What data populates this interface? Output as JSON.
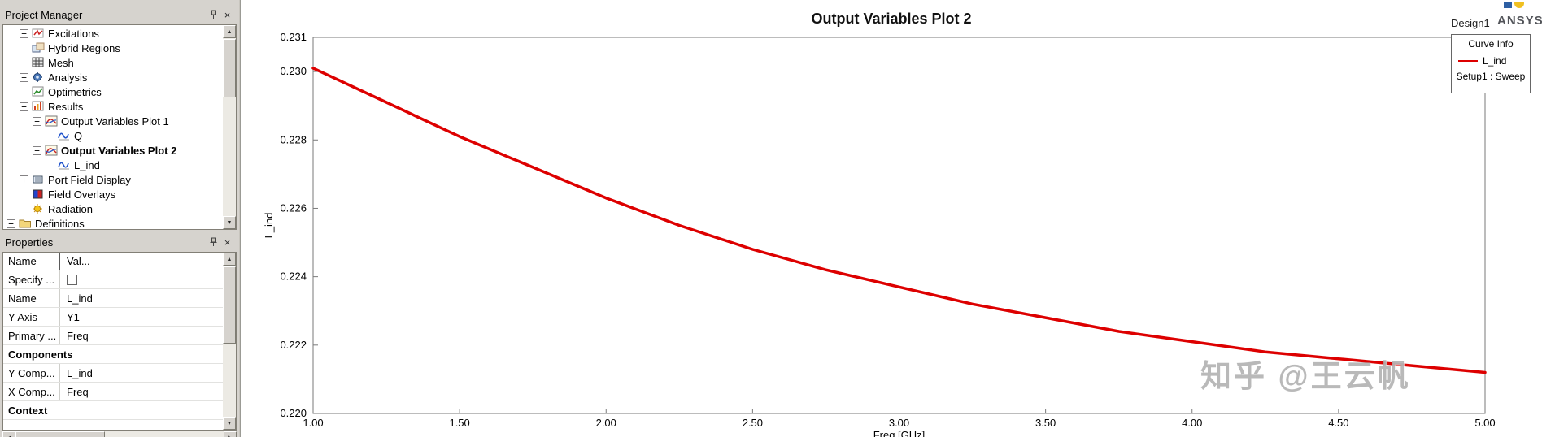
{
  "project_manager": {
    "title": "Project Manager",
    "tree": [
      {
        "label": "Excitations",
        "depth": 1,
        "toggle": "+",
        "icon": "excitations-icon",
        "bold": false
      },
      {
        "label": "Hybrid Regions",
        "depth": 1,
        "toggle": "",
        "icon": "hybrid-regions-icon",
        "bold": false
      },
      {
        "label": "Mesh",
        "depth": 1,
        "toggle": "",
        "icon": "mesh-icon",
        "bold": false
      },
      {
        "label": "Analysis",
        "depth": 1,
        "toggle": "+",
        "icon": "analysis-icon",
        "bold": false
      },
      {
        "label": "Optimetrics",
        "depth": 1,
        "toggle": "",
        "icon": "optimetrics-icon",
        "bold": false
      },
      {
        "label": "Results",
        "depth": 1,
        "toggle": "-",
        "icon": "results-icon",
        "bold": false
      },
      {
        "label": "Output Variables Plot 1",
        "depth": 2,
        "toggle": "-",
        "icon": "plot-icon",
        "bold": false
      },
      {
        "label": "Q",
        "depth": 3,
        "toggle": "",
        "icon": "trace-icon",
        "bold": false
      },
      {
        "label": "Output Variables Plot 2",
        "depth": 2,
        "toggle": "-",
        "icon": "plot-icon",
        "bold": true
      },
      {
        "label": "L_ind",
        "depth": 3,
        "toggle": "",
        "icon": "trace-icon",
        "bold": false
      },
      {
        "label": "Port Field Display",
        "depth": 1,
        "toggle": "+",
        "icon": "port-field-icon",
        "bold": false
      },
      {
        "label": "Field Overlays",
        "depth": 1,
        "toggle": "",
        "icon": "field-overlays-icon",
        "bold": false
      },
      {
        "label": "Radiation",
        "depth": 1,
        "toggle": "",
        "icon": "radiation-icon",
        "bold": false
      },
      {
        "label": "Definitions",
        "depth": 0,
        "toggle": "-",
        "icon": "folder-icon",
        "bold": false
      }
    ]
  },
  "properties": {
    "title": "Properties",
    "columns": [
      "Name",
      "Val..."
    ],
    "rows": [
      {
        "name": "Specify ...",
        "value": "",
        "checkbox": true
      },
      {
        "name": "Name",
        "value": "L_ind"
      },
      {
        "name": "Y Axis",
        "value": "Y1"
      },
      {
        "name": "Primary ...",
        "value": "Freq"
      },
      {
        "name": "Components",
        "value": "",
        "section": true
      },
      {
        "name": "Y Comp...",
        "value": "L_ind"
      },
      {
        "name": "X Comp...",
        "value": "Freq"
      },
      {
        "name": "Context",
        "value": "",
        "section": true
      }
    ]
  },
  "chart": {
    "title": "Output Variables Plot 2",
    "design_label": "Design1",
    "brand": "ANSYS",
    "legend": {
      "title": "Curve Info",
      "entries": [
        {
          "label": "L_ind",
          "sublabel": "Setup1 : Sweep",
          "color": "#dd0000"
        }
      ]
    },
    "watermark": "知乎 @王云帆"
  },
  "chart_data": {
    "type": "line",
    "title": "Output Variables Plot 2",
    "xlabel": "Freq [GHz]",
    "ylabel": "L_ind",
    "xlim": [
      1.0,
      5.0
    ],
    "ylim": [
      0.22,
      0.231
    ],
    "x_ticks": [
      1.0,
      1.5,
      2.0,
      2.5,
      3.0,
      3.5,
      4.0,
      4.5,
      5.0
    ],
    "y_ticks": [
      0.22,
      0.222,
      0.224,
      0.226,
      0.228,
      0.23,
      0.231
    ],
    "grid": false,
    "legend_position": "top-right",
    "series": [
      {
        "name": "L_ind",
        "color": "#dd0000",
        "x": [
          1.0,
          1.25,
          1.5,
          1.75,
          2.0,
          2.25,
          2.5,
          2.75,
          3.0,
          3.25,
          3.5,
          3.75,
          4.0,
          4.25,
          4.5,
          4.75,
          5.0
        ],
        "y": [
          0.2301,
          0.2291,
          0.2281,
          0.2272,
          0.2263,
          0.2255,
          0.2248,
          0.2242,
          0.2237,
          0.2232,
          0.2228,
          0.2224,
          0.2221,
          0.2218,
          0.2216,
          0.2214,
          0.2212
        ]
      }
    ]
  }
}
